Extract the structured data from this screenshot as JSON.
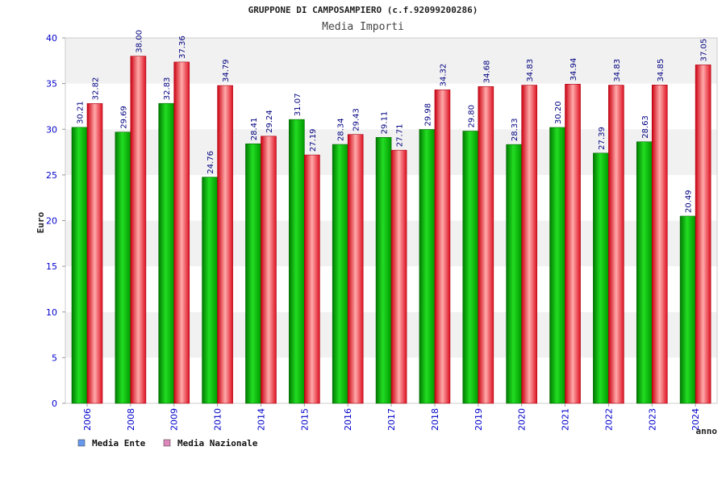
{
  "chart_data": {
    "type": "bar",
    "title": "GRUPPONE DI CAMPOSAMPIERO (c.f.92099200286)",
    "subtitle": "Media Importi",
    "ylabel": "Euro",
    "xlabel": "anno",
    "ylim": [
      0,
      40
    ],
    "yticks": [
      0,
      5,
      10,
      15,
      20,
      25,
      30,
      35,
      40
    ],
    "grid": "horizontal bands",
    "legend_position": "bottom-left",
    "categories": [
      "2006",
      "2008",
      "2009",
      "2010",
      "2014",
      "2015",
      "2016",
      "2017",
      "2018",
      "2019",
      "2020",
      "2021",
      "2022",
      "2023",
      "2024"
    ],
    "series": [
      {
        "name": "Media Ente",
        "legend_color": "#6699ee",
        "color": "#00bb00",
        "values": [
          30.21,
          29.69,
          32.83,
          24.76,
          28.41,
          31.07,
          28.34,
          29.11,
          29.98,
          29.8,
          28.33,
          30.2,
          27.39,
          28.63,
          20.49
        ],
        "labels": [
          "30.21",
          "29.69",
          "32.83",
          "24.76",
          "28.41",
          "31.07",
          "28.34",
          "29.11",
          "29.98",
          "29.80",
          "28.33",
          "30.20",
          "27.39",
          "28.63",
          "20.49"
        ]
      },
      {
        "name": "Media Nazionale",
        "legend_color": "#dd88bb",
        "color": "#ee2233",
        "values": [
          32.82,
          38.0,
          37.36,
          34.79,
          29.24,
          27.19,
          29.43,
          27.71,
          34.32,
          34.68,
          34.83,
          34.94,
          34.83,
          34.85,
          37.05
        ],
        "labels": [
          "32.82",
          "38.00",
          "37.36",
          "34.79",
          "29.24",
          "27.19",
          "29.43",
          "27.71",
          "34.32",
          "34.68",
          "34.83",
          "34.94",
          "34.83",
          "34.85",
          "37.05"
        ]
      }
    ]
  }
}
